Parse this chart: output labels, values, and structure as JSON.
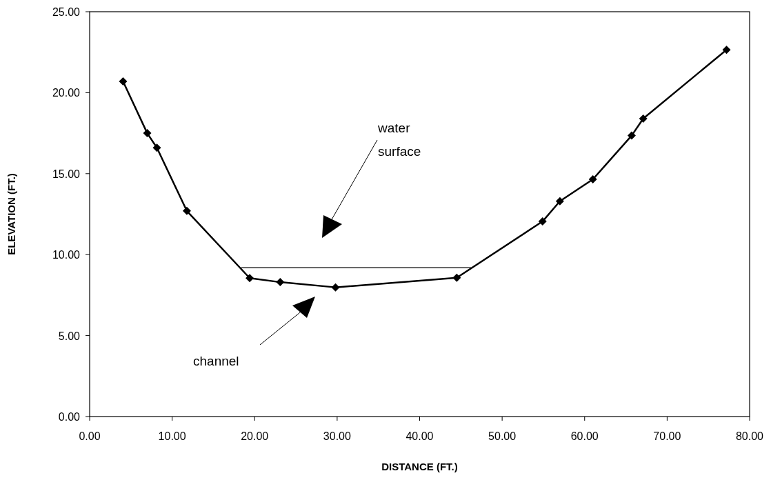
{
  "chart_data": {
    "type": "line",
    "xlabel": "DISTANCE (FT.)",
    "ylabel": "ELEVATION (FT.)",
    "xlim": [
      0,
      80
    ],
    "ylim": [
      0,
      25
    ],
    "xticks": [
      {
        "value": 0,
        "label": "0.00"
      },
      {
        "value": 10,
        "label": "10.00"
      },
      {
        "value": 20,
        "label": "20.00"
      },
      {
        "value": 30,
        "label": "30.00"
      },
      {
        "value": 40,
        "label": "40.00"
      },
      {
        "value": 50,
        "label": "50.00"
      },
      {
        "value": 60,
        "label": "60.00"
      },
      {
        "value": 70,
        "label": "70.00"
      },
      {
        "value": 80,
        "label": "80.00"
      }
    ],
    "yticks": [
      {
        "value": 0,
        "label": "0.00"
      },
      {
        "value": 5,
        "label": "5.00"
      },
      {
        "value": 10,
        "label": "10.00"
      },
      {
        "value": 15,
        "label": "15.00"
      },
      {
        "value": 20,
        "label": "20.00"
      },
      {
        "value": 25,
        "label": "25.00"
      }
    ],
    "marker": "diamond",
    "grid": false,
    "series": [
      {
        "color": "#000000",
        "x": [
          4.05,
          6.98,
          8.15,
          11.78,
          19.4,
          23.1,
          29.8,
          44.5,
          54.9,
          57.0,
          61.0,
          65.7,
          67.1,
          77.2
        ],
        "values": [
          20.7,
          17.5,
          16.6,
          12.7,
          8.55,
          8.3,
          7.98,
          8.57,
          12.05,
          13.3,
          14.65,
          17.35,
          18.4,
          22.65
        ]
      },
      {
        "color": "#000000",
        "marker": "none",
        "x": [
          18.4,
          46.2
        ],
        "values": [
          9.19,
          9.19
        ]
      }
    ],
    "annotations": [
      "water surface",
      "channel"
    ]
  }
}
